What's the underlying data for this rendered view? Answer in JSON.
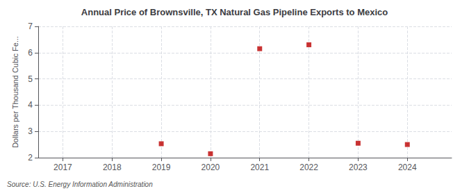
{
  "chart_data": {
    "type": "scatter",
    "title": "Annual Price of Brownsville, TX Natural Gas Pipeline Exports to Mexico",
    "ylabel": "Dollars per Thousand Cubic Fe...",
    "source": "Source: U.S. Energy Information Administration",
    "x": [
      2019,
      2020,
      2021,
      2022,
      2023,
      2024
    ],
    "values": [
      2.53,
      2.15,
      6.15,
      6.3,
      2.55,
      2.5
    ],
    "color": "#bb0000",
    "marker": "square",
    "xlim": [
      2016.5,
      2024.9
    ],
    "xticks": [
      2017,
      2018,
      2019,
      2020,
      2021,
      2022,
      2023,
      2024
    ],
    "ylim": [
      2.0,
      7.0
    ],
    "yticks": [
      2,
      3,
      4,
      5,
      6,
      7
    ],
    "grid": true
  }
}
